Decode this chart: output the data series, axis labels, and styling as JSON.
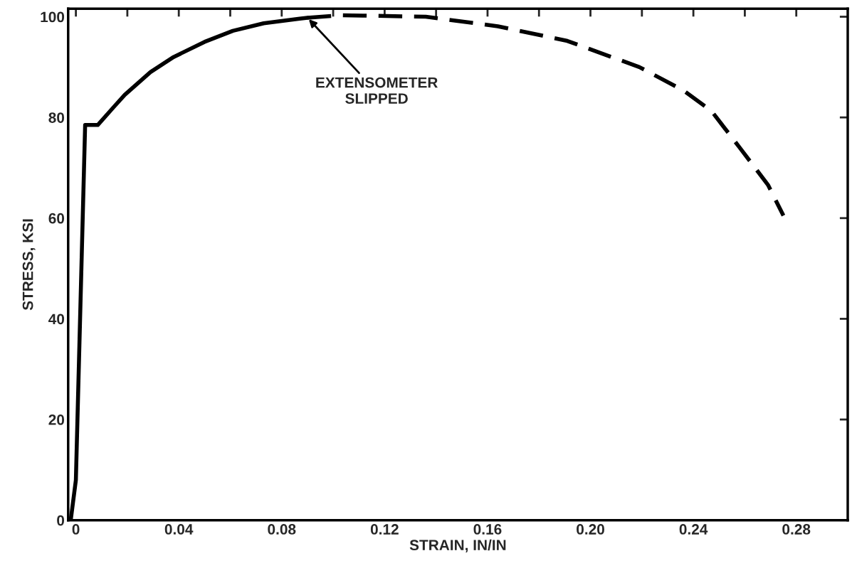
{
  "chart_data": {
    "type": "line",
    "xlabel": "STRAIN, IN/IN",
    "ylabel": "STRESS, KSI",
    "xlim": [
      -0.003,
      0.3
    ],
    "ylim": [
      0,
      101.6
    ],
    "xticks": [
      0,
      {
        "value": 0.02,
        "label": null
      },
      0.04,
      {
        "value": 0.06,
        "label": null
      },
      0.08,
      {
        "value": 0.1,
        "label": null
      },
      0.12,
      {
        "value": 0.14,
        "label": null
      },
      0.16,
      {
        "value": 0.18,
        "label": null
      },
      {
        "value": 0.2,
        "label": "0.20"
      },
      {
        "value": 0.22,
        "label": null
      },
      0.24,
      {
        "value": 0.26,
        "label": null
      },
      0.28
    ],
    "yticks": [
      0,
      20,
      40,
      60,
      80,
      100
    ],
    "grid": false,
    "marker": "none",
    "series": [
      {
        "color": "#000000",
        "line_style": "solid",
        "x": [
          -0.002,
          0.0,
          0.0036,
          0.0085,
          0.0146,
          0.019,
          0.029,
          0.038,
          0.05,
          0.061,
          0.073,
          0.087,
          0.09
        ],
        "values": [
          0,
          8,
          78.5,
          78.5,
          82,
          84.5,
          89,
          92,
          95,
          97.2,
          98.7,
          99.6,
          99.8
        ]
      },
      {
        "color": "#000000",
        "line_style": "dashed",
        "x": [
          0.09,
          0.103,
          0.136,
          0.164,
          0.191,
          0.219,
          0.236,
          0.247,
          0.258,
          0.269,
          0.275
        ],
        "values": [
          99.8,
          100.3,
          100,
          98.1,
          95.2,
          90,
          85.4,
          81.3,
          74,
          66.6,
          60.5
        ]
      }
    ],
    "annotations": [
      {
        "text": "EXTENSOMETER\nSLIPPED",
        "x": 0.09,
        "y": 99.8
      }
    ]
  }
}
